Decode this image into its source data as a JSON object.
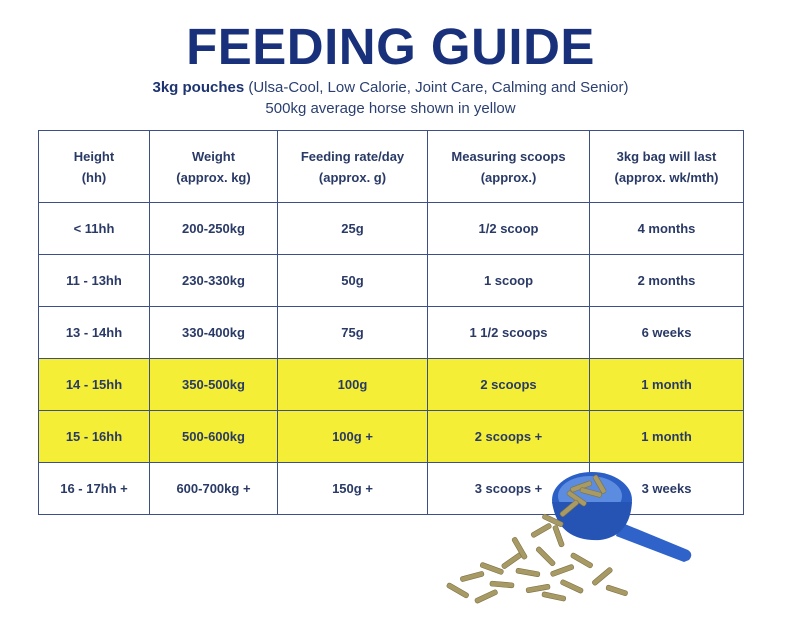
{
  "title": "FEEDING GUIDE",
  "subtitle": {
    "bold": "3kg pouches",
    "rest": " (Ulsa-Cool, Low Calorie, Joint Care, Calming and Senior)"
  },
  "note": "500kg average horse shown in yellow",
  "highlight_color": "#f4ef36",
  "scoop_color": "#2f63c9",
  "table": {
    "headers": [
      [
        "Height",
        "(hh)"
      ],
      [
        "Weight",
        "(approx. kg)"
      ],
      [
        "Feeding rate/day",
        "(approx. g)"
      ],
      [
        "Measuring scoops",
        "(approx.)"
      ],
      [
        "3kg bag will last",
        "(approx. wk/mth)"
      ]
    ],
    "rows": [
      {
        "cells": [
          "< 11hh",
          "200-250kg",
          "25g",
          "1/2 scoop",
          "4 months"
        ],
        "highlight": false
      },
      {
        "cells": [
          "11 - 13hh",
          "230-330kg",
          "50g",
          "1 scoop",
          "2 months"
        ],
        "highlight": false
      },
      {
        "cells": [
          "13 - 14hh",
          "330-400kg",
          "75g",
          "1 1/2 scoops",
          "6 weeks"
        ],
        "highlight": false
      },
      {
        "cells": [
          "14 - 15hh",
          "350-500kg",
          "100g",
          "2 scoops",
          "1 month"
        ],
        "highlight": true
      },
      {
        "cells": [
          "15 - 16hh",
          "500-600kg",
          "100g +",
          "2 scoops +",
          "1 month"
        ],
        "highlight": true
      },
      {
        "cells": [
          "16 - 17hh +",
          "600-700kg +",
          "150g +",
          "3 scoops +",
          "3 weeks"
        ],
        "highlight": false
      }
    ]
  },
  "image": {
    "name": "scoop-with-pellets",
    "icon": "feed-scoop-icon"
  }
}
